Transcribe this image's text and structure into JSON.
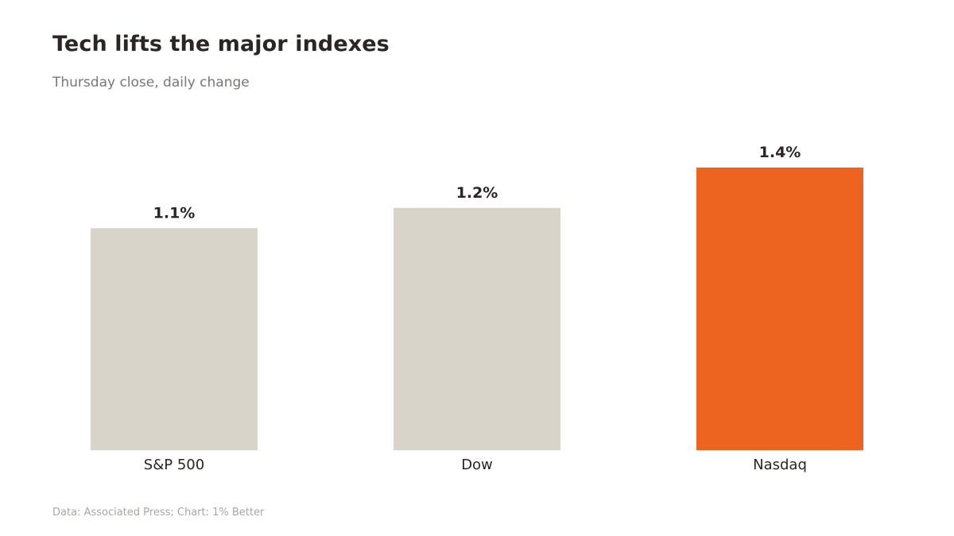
{
  "chart_data": {
    "type": "bar",
    "title": "Tech lifts the major indexes",
    "subtitle": "Thursday close, daily change",
    "categories": [
      "S&P 500",
      "Dow",
      "Nasdaq"
    ],
    "values": [
      1.1,
      1.2,
      1.4
    ],
    "value_labels": [
      "1.1%",
      "1.2%",
      "1.4%"
    ],
    "unit": "%",
    "ylim": [
      0,
      1.4
    ],
    "grid": false,
    "legend": "none",
    "colors": {
      "default": "#d9d4ca",
      "highlight": "#ec6420"
    },
    "highlight_index": 2
  },
  "footer": {
    "source": "Data: Associated Press; Chart: 1% Better"
  }
}
